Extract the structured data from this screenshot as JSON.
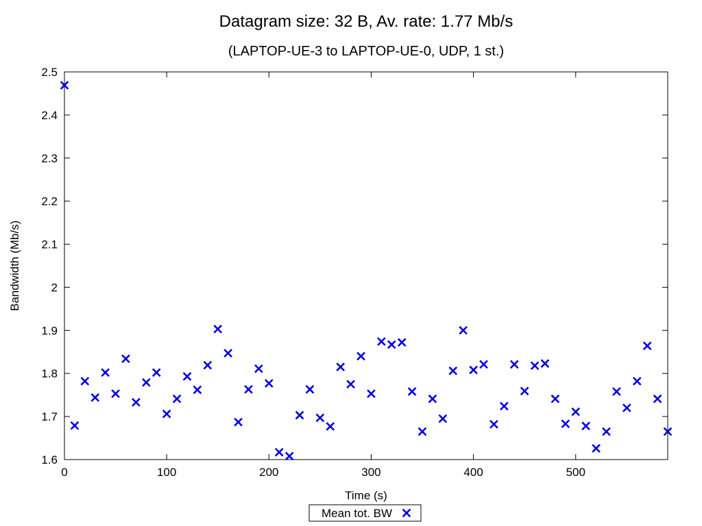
{
  "chart_data": {
    "type": "scatter",
    "title": "Datagram size: 32 B, Av. rate: 1.77 Mb/s",
    "subtitle": "(LAPTOP-UE-3 to LAPTOP-UE-0, UDP, 1 st.)",
    "xlabel": "Time (s)",
    "ylabel": "Bandwidth (Mb/s)",
    "xlim": [
      0,
      590
    ],
    "ylim": [
      1.6,
      2.5
    ],
    "xticks": [
      0,
      100,
      200,
      300,
      400,
      500
    ],
    "xtick_labels": [
      "0",
      "100",
      "200",
      "300",
      "400",
      "500"
    ],
    "yticks": [
      1.6,
      1.7,
      1.8,
      1.9,
      2.0,
      2.1,
      2.2,
      2.3,
      2.4,
      2.5
    ],
    "ytick_labels": [
      "1.6",
      "1.7",
      "1.8",
      "1.9",
      "2",
      "2.1",
      "2.2",
      "2.3",
      "2.4",
      "2.5"
    ],
    "grid": false,
    "legend_position": "bottom-center",
    "series": [
      {
        "name": "Mean tot. BW",
        "color": "#0000e0",
        "marker": "x",
        "x": [
          0,
          10,
          20,
          30,
          40,
          50,
          60,
          70,
          80,
          90,
          100,
          110,
          120,
          130,
          140,
          150,
          160,
          170,
          180,
          190,
          200,
          210,
          220,
          230,
          240,
          250,
          260,
          270,
          280,
          290,
          300,
          310,
          320,
          330,
          340,
          350,
          360,
          370,
          380,
          390,
          400,
          410,
          420,
          430,
          440,
          450,
          460,
          470,
          480,
          490,
          500,
          510,
          520,
          530,
          540,
          550,
          560,
          570,
          580,
          590
        ],
        "y": [
          2.469,
          1.679,
          1.782,
          1.744,
          1.802,
          1.753,
          1.834,
          1.733,
          1.779,
          1.802,
          1.706,
          1.741,
          1.793,
          1.762,
          1.819,
          1.903,
          1.847,
          1.687,
          1.763,
          1.811,
          1.777,
          1.617,
          1.608,
          1.703,
          1.763,
          1.697,
          1.677,
          1.815,
          1.775,
          1.84,
          1.753,
          1.874,
          1.867,
          1.872,
          1.758,
          1.665,
          1.741,
          1.695,
          1.806,
          1.9,
          1.808,
          1.821,
          1.682,
          1.724,
          1.821,
          1.759,
          1.818,
          1.823,
          1.741,
          1.683,
          1.711,
          1.678,
          1.626,
          1.665,
          1.758,
          1.72,
          1.782,
          1.864,
          1.741,
          1.665
        ]
      }
    ]
  }
}
